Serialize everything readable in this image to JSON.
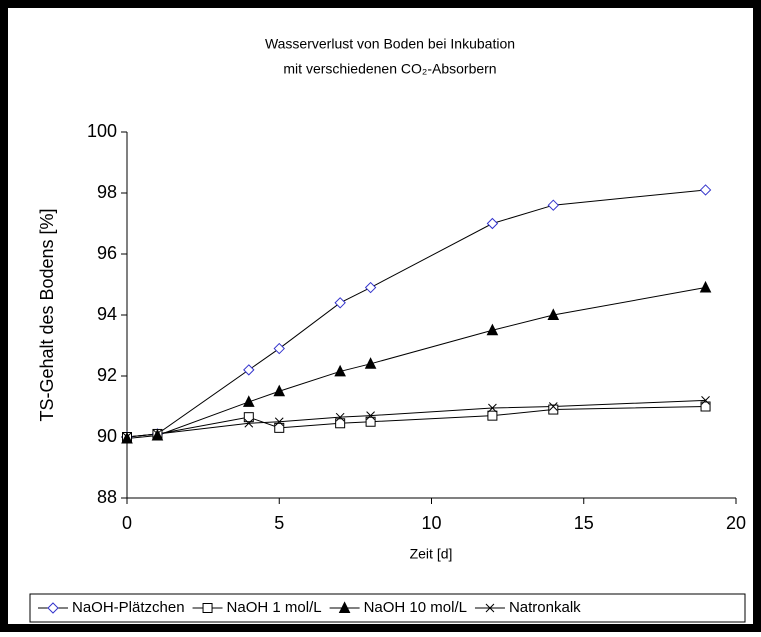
{
  "chart_data": {
    "type": "line",
    "title": [
      "Wasserverlust von Boden bei Inkubation",
      "mit verschiedenen CO₂-Absorbern"
    ],
    "x_label": "Zeit [d]",
    "y_label": "TS-Gehalt des Bodens [%]",
    "x": [
      0,
      1,
      4,
      5,
      7,
      8,
      12,
      14,
      19
    ],
    "series": [
      {
        "name": "NaOH-Plätzchen",
        "color": "#000000",
        "marker": "diamond",
        "marker_color": "#3333cc",
        "values": [
          90.0,
          90.1,
          92.2,
          92.9,
          94.4,
          94.9,
          97.0,
          97.6,
          98.1
        ]
      },
      {
        "name": "NaOH 1 mol/L",
        "color": "#000000",
        "marker": "square",
        "marker_color": "#000000",
        "values": [
          90.0,
          90.1,
          90.65,
          90.3,
          90.45,
          90.5,
          90.7,
          90.9,
          91.0
        ]
      },
      {
        "name": "NaOH 10 mol/L",
        "color": "#000000",
        "marker": "triangle",
        "marker_color": "#000000",
        "values": [
          89.95,
          90.05,
          91.15,
          91.5,
          92.15,
          92.4,
          93.5,
          94.0,
          94.9
        ]
      },
      {
        "name": "Natronkalk",
        "color": "#000000",
        "marker": "x",
        "marker_color": "#000000",
        "values": [
          90.0,
          90.1,
          90.45,
          90.5,
          90.65,
          90.7,
          90.95,
          91.0,
          91.2
        ]
      }
    ],
    "xlim": [
      0,
      20
    ],
    "xticks": [
      0,
      5,
      10,
      15,
      20
    ],
    "ylim": [
      88,
      100
    ],
    "yticks": [
      88,
      90,
      92,
      94,
      96,
      98,
      100
    ],
    "grid": false,
    "legend": "bottom"
  }
}
